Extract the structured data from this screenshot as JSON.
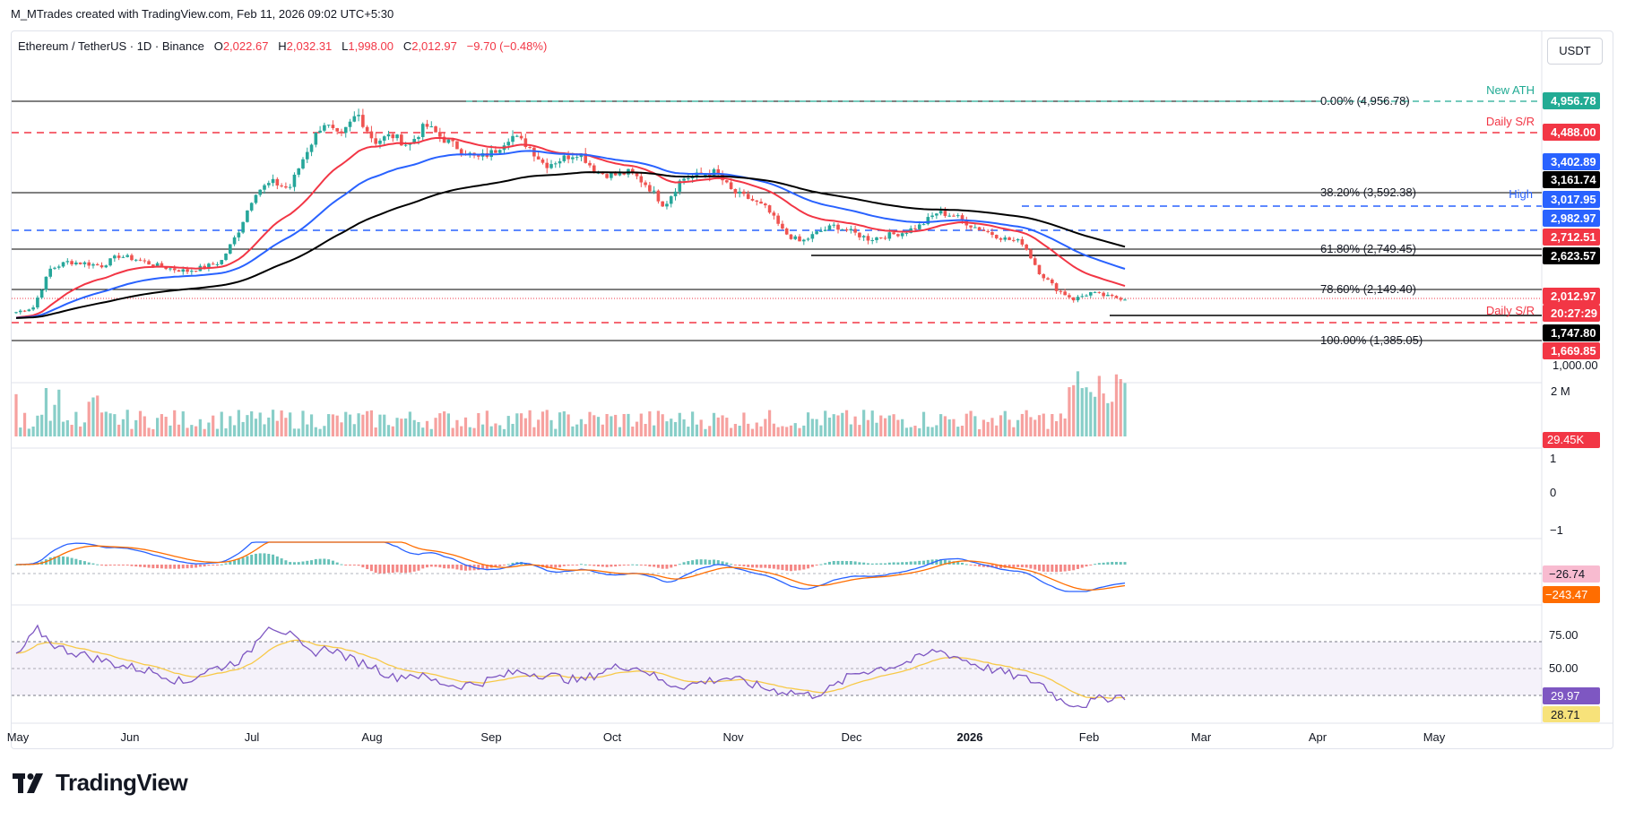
{
  "header": {
    "attribution": "M_MTrades created with TradingView.com, Feb 11, 2026 09:02 UTC+5:30",
    "symbol": "Ethereum / TetherUS · 1D · Binance",
    "open_label": "O",
    "open": "2,022.67",
    "high_label": "H",
    "high": "2,032.31",
    "low_label": "L",
    "low": "1,998.00",
    "close_label": "C",
    "close": "2,012.97",
    "change": "−9.70 (−0.48%)",
    "currency_button": "USDT"
  },
  "brand": {
    "name": "TradingView"
  },
  "colors": {
    "up": "#26a69a",
    "down": "#ef5350",
    "ema50": "#f23645",
    "ema100": "#2962ff",
    "ema200": "#000000",
    "macd": "#2962ff",
    "signal": "#ff6d00",
    "rsi": "#7e57c2",
    "rsi_ma": "#f7c948"
  },
  "chart_data": [
    {
      "type": "candlestick",
      "panel": "price",
      "x_axis_ticks": [
        "May",
        "Jun",
        "Jul",
        "Aug",
        "Sep",
        "Oct",
        "Nov",
        "Dec",
        "2026",
        "Feb",
        "Mar",
        "Apr",
        "May"
      ],
      "y_axis_ticks": [
        "1,000.00"
      ],
      "ohlc_last": {
        "open": 2022.67,
        "high": 2032.31,
        "low": 1998.0,
        "close": 2012.97
      },
      "close_series_approx": [
        1810,
        1880,
        2450,
        2560,
        2540,
        2500,
        2650,
        2600,
        2520,
        2460,
        2420,
        2480,
        2560,
        3000,
        3600,
        3750,
        3650,
        4200,
        4650,
        4400,
        4780,
        4350,
        4450,
        4300,
        4600,
        4400,
        4250,
        4100,
        4200,
        4450,
        4300,
        4000,
        4100,
        4200,
        3900,
        3850,
        3900,
        3700,
        3400,
        3800,
        3850,
        3900,
        3600,
        3500,
        3350,
        3000,
        2850,
        3000,
        3100,
        3000,
        2900,
        2950,
        3000,
        3100,
        3300,
        3250,
        3100,
        3000,
        2900,
        2850,
        2400,
        2150,
        2000,
        2100,
        2040,
        2013
      ],
      "fib_levels": [
        {
          "label": "0.00% (4,956.78)",
          "value": 4956.78
        },
        {
          "label": "38.20% (3,592.38)",
          "value": 3592.38
        },
        {
          "label": "61.80% (2,749.45)",
          "value": 2749.45
        },
        {
          "label": "78.60% (2,149.40)",
          "value": 2149.4
        },
        {
          "label": "100.00% (1,385.05)",
          "value": 1385.05
        }
      ],
      "annotations": [
        {
          "text": "New ATH",
          "value": 4956.78
        },
        {
          "text": "Daily S/R",
          "value": 4488.0
        },
        {
          "text": "High",
          "value": 3017.95
        },
        {
          "text": "Daily S/R",
          "value": 1669.85
        }
      ],
      "price_labels": [
        {
          "text": "4,956.78",
          "color": "#22ab94",
          "value": 4956.78
        },
        {
          "text": "4,488.00",
          "color": "#f23645",
          "value": 4488.0
        },
        {
          "text": "3,402.89",
          "color": "#2962ff",
          "value": 3402.89
        },
        {
          "text": "3,161.74",
          "color": "#000000",
          "value": 3161.74
        },
        {
          "text": "3,017.95",
          "color": "#2962ff",
          "value": 3017.95
        },
        {
          "text": "2,982.97",
          "color": "#2962ff",
          "value": 2982.97
        },
        {
          "text": "2,712.51",
          "color": "#f23645",
          "value": 2712.51
        },
        {
          "text": "2,623.57",
          "color": "#000000",
          "value": 2623.57
        },
        {
          "text": "2,012.97",
          "color": "#f23645",
          "value": 2012.97
        },
        {
          "text": "20:27:29",
          "color": "#f23645",
          "value": 2012.97
        },
        {
          "text": "1,747.80",
          "color": "#000000",
          "value": 1747.8
        },
        {
          "text": "1,669.85",
          "color": "#f23645",
          "value": 1669.85
        }
      ]
    },
    {
      "type": "bar",
      "panel": "volume",
      "y_axis_ticks": [
        "2 M"
      ],
      "last_label": "29.45K"
    },
    {
      "type": "line",
      "panel": "oscillator",
      "y_axis_ticks": [
        "1",
        "0",
        "−1"
      ]
    },
    {
      "type": "line",
      "panel": "macd",
      "macd_label": "−26.74",
      "signal_label": "−243.47"
    },
    {
      "type": "line",
      "panel": "rsi",
      "y_axis_ticks": [
        "75.00",
        "50.00"
      ],
      "rsi_label": "29.97",
      "rsi_ma_label": "28.71",
      "rsi_series_approx": [
        62,
        85,
        70,
        65,
        60,
        55,
        52,
        48,
        40,
        50,
        55,
        62,
        90,
        82,
        65,
        70,
        60,
        55,
        45,
        48,
        42,
        38,
        40,
        45,
        50,
        48,
        45,
        42,
        50,
        55,
        52,
        40,
        38,
        42,
        45,
        40,
        35,
        33,
        30,
        36,
        48,
        52,
        55,
        60,
        68,
        62,
        55,
        50,
        45,
        40,
        25,
        22,
        28,
        30
      ]
    }
  ]
}
